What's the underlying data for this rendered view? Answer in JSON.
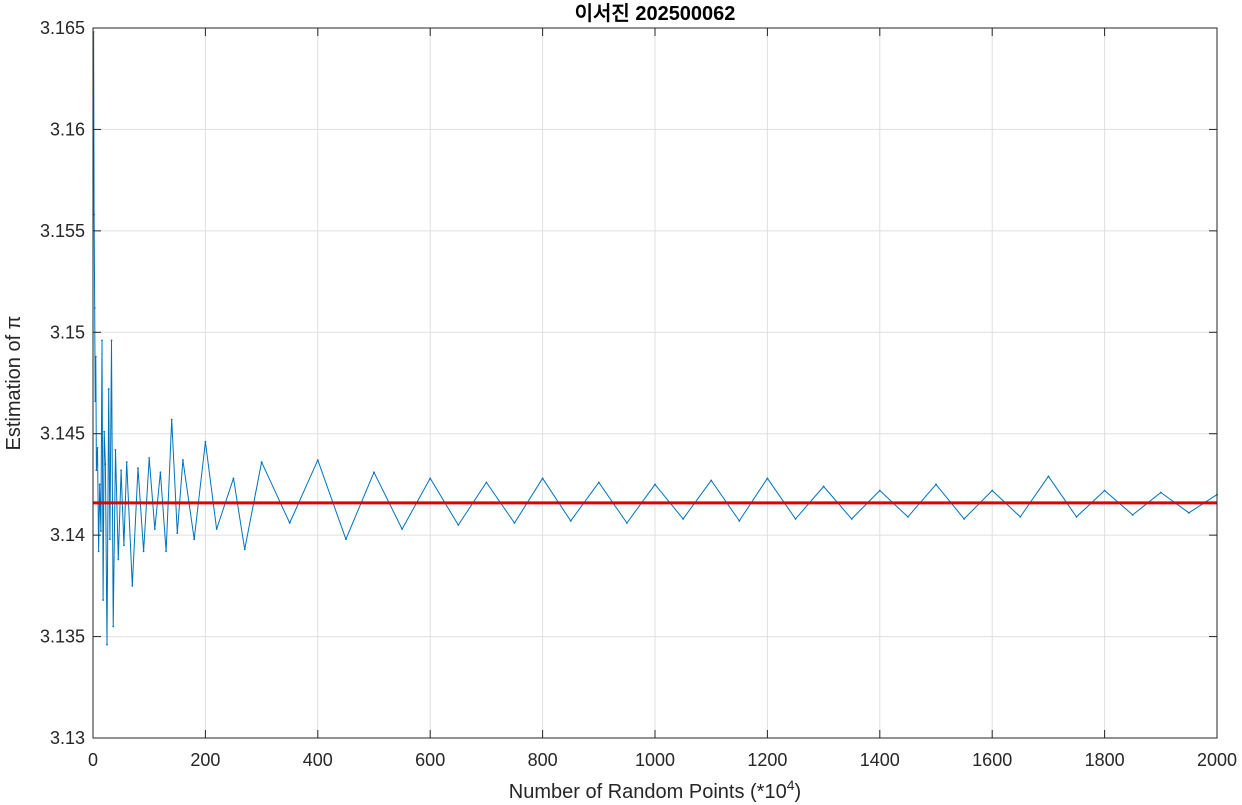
{
  "chart_data": {
    "type": "line",
    "title": "이서진 202500062",
    "xlabel": "Number of Random Points (*10^4)",
    "ylabel": "Estimation of π",
    "xlim": [
      0,
      2000
    ],
    "ylim": [
      3.13,
      3.165
    ],
    "xticks": [
      "0",
      "200",
      "400",
      "600",
      "800",
      "1000",
      "1200",
      "1400",
      "1600",
      "1800",
      "2000"
    ],
    "yticks": [
      "3.13",
      "3.135",
      "3.14",
      "3.145",
      "3.15",
      "3.155",
      "3.16",
      "3.165"
    ],
    "grid": true,
    "series": [
      {
        "color": "#0072BD",
        "x": [
          1,
          2,
          3,
          4,
          5,
          6,
          8,
          10,
          12,
          14,
          16,
          18,
          20,
          22,
          25,
          28,
          30,
          33,
          36,
          40,
          45,
          50,
          55,
          60,
          70,
          80,
          90,
          100,
          110,
          120,
          130,
          140,
          150,
          160,
          180,
          200,
          220,
          250,
          270,
          300,
          350,
          400,
          450,
          500,
          550,
          600,
          650,
          700,
          750,
          800,
          850,
          900,
          950,
          1000,
          1050,
          1100,
          1150,
          1200,
          1250,
          1300,
          1350,
          1400,
          1450,
          1500,
          1550,
          1600,
          1650,
          1700,
          1750,
          1800,
          1850,
          1900,
          1950,
          2000
        ],
        "values": [
          3.1648,
          3.1558,
          3.1512,
          3.1466,
          3.1488,
          3.1432,
          3.1443,
          3.1392,
          3.1425,
          3.1402,
          3.1496,
          3.1368,
          3.1451,
          3.1435,
          3.1346,
          3.1472,
          3.1398,
          3.1496,
          3.1355,
          3.1442,
          3.1388,
          3.1432,
          3.1395,
          3.1436,
          3.1375,
          3.1433,
          3.1392,
          3.1438,
          3.1403,
          3.1431,
          3.1392,
          3.1457,
          3.1401,
          3.1437,
          3.1398,
          3.1446,
          3.1403,
          3.1428,
          3.1393,
          3.1436,
          3.1406,
          3.1437,
          3.1398,
          3.1431,
          3.1403,
          3.1428,
          3.1405,
          3.1426,
          3.1406,
          3.1428,
          3.1407,
          3.1426,
          3.1406,
          3.1425,
          3.1408,
          3.1427,
          3.1407,
          3.1428,
          3.1408,
          3.1424,
          3.1408,
          3.1422,
          3.1409,
          3.1425,
          3.1408,
          3.1422,
          3.1409,
          3.1429,
          3.1409,
          3.1422,
          3.141,
          3.1421,
          3.1411,
          3.142
        ]
      },
      {
        "color": "#E00000",
        "x": [
          0,
          2000
        ],
        "values": [
          3.14159,
          3.14159
        ]
      }
    ]
  }
}
